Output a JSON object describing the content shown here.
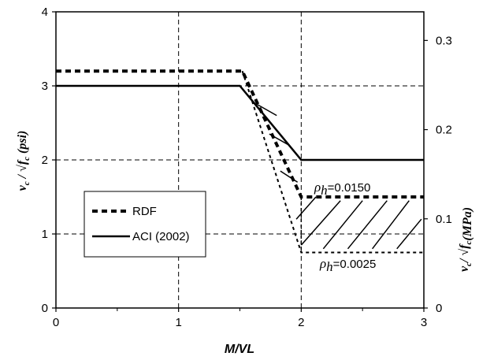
{
  "chart_data": {
    "type": "line",
    "xlabel": "M/VL",
    "ylabel_left": "v_c / √f'_c (psi)",
    "ylabel_left_parts": {
      "main": "v",
      "sub": "c",
      "slash": " / ",
      "radical": "√",
      "f": "f",
      "fsub": "c",
      "unit": " (psi)"
    },
    "ylabel_right": "v_c / √f'_c (MPa)",
    "ylabel_right_parts": {
      "main": "v",
      "sub": "c",
      "slash": "/ ",
      "radical": "√",
      "f": "f",
      "fsub": "c",
      "unit": "(MPa)"
    },
    "xlim": [
      0,
      3
    ],
    "ylim_left": [
      0,
      4
    ],
    "ylim_right": [
      0,
      0.3321
    ],
    "x_ticks": [
      "0",
      "1",
      "2",
      "3"
    ],
    "y_ticks_left": [
      "0",
      "1",
      "2",
      "3",
      "4"
    ],
    "y_ticks_right": [
      "0",
      "0.1",
      "0.2",
      "0.3"
    ],
    "grid": true,
    "series": [
      {
        "name": "RDF",
        "style": "dashed-thick",
        "upper": {
          "x": [
            0,
            1.52,
            2.0,
            3.0
          ],
          "y": [
            3.2,
            3.2,
            1.5,
            1.5
          ]
        },
        "lower": {
          "x": [
            1.52,
            2.0,
            3.0
          ],
          "y": [
            3.2,
            0.75,
            0.75
          ]
        }
      },
      {
        "name": "ACI (2002)",
        "style": "solid",
        "x": [
          0,
          1.5,
          2.0,
          3.0
        ],
        "y": [
          3.0,
          3.0,
          2.0,
          2.0
        ]
      }
    ],
    "annotations": [
      {
        "rho": "ρ",
        "sub": "h",
        "text": "=0.0150"
      },
      {
        "rho": "ρ",
        "sub": "h",
        "text": "=0.0025"
      }
    ],
    "legend": {
      "placement": "center-left",
      "entries": [
        "RDF",
        "ACI (2002)"
      ]
    }
  }
}
